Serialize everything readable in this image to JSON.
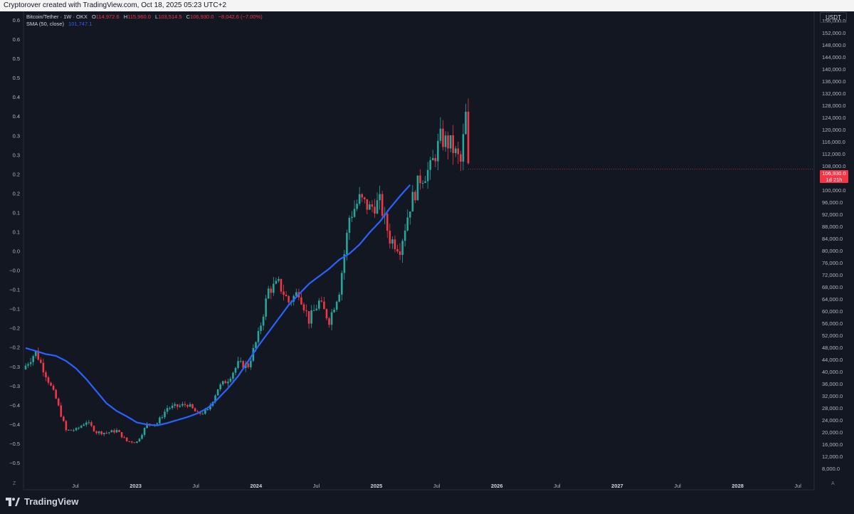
{
  "header": {
    "credit": "Cryptorover created with TradingView.com, Oct 18, 2025 05:23 UTC+2"
  },
  "legend": {
    "symbol": "Bitcoin/Tether · 1W · OKX",
    "open_label": "O",
    "open": "114,972.6",
    "high_label": "H",
    "high": "115,960.0",
    "low_label": "L",
    "low": "103,514.5",
    "close_label": "C",
    "close": "106,930.0",
    "change": "−8,042.6 (−7.00%)",
    "sma_label": "SMA (50, close)",
    "sma_value": "101,747.1"
  },
  "currency": "USDT",
  "price_tag": {
    "price": "106,930.0",
    "countdown": "1d 21h"
  },
  "axis_corners": {
    "left": "Z",
    "right": "A"
  },
  "footer": {
    "brand": "TradingView"
  },
  "colors": {
    "up": "#26a69a",
    "down": "#f23645",
    "sma": "#2962ff",
    "background": "#131722"
  },
  "chart_data": {
    "type": "candlestick",
    "interval": "1W",
    "ylabel_right": "USDT",
    "y_right_ticks": [
      "156,000.0",
      "152,000.0",
      "148,000.0",
      "144,000.0",
      "140,000.0",
      "136,000.0",
      "132,000.0",
      "128,000.0",
      "124,000.0",
      "120,000.0",
      "116,000.0",
      "112,000.0",
      "108,000.0",
      "104,000.0",
      "100,000.0",
      "96,000.0",
      "92,000.0",
      "88,000.0",
      "84,000.0",
      "80,000.0",
      "76,000.0",
      "72,000.0",
      "68,000.0",
      "64,000.0",
      "60,000.0",
      "56,000.0",
      "52,000.0",
      "48,000.0",
      "44,000.0",
      "40,000.0",
      "36,000.0",
      "32,000.0",
      "28,000.0",
      "24,000.0",
      "20,000.0",
      "16,000.0",
      "12,000.0",
      "8,000.0"
    ],
    "y_left_ticks": [
      "0.6",
      "0.6",
      "0.5",
      "0.5",
      "0.4",
      "0.4",
      "0.3",
      "0.3",
      "0.2",
      "0.2",
      "0.1",
      "0.1",
      "0.0",
      "−0.0",
      "−0.1",
      "−0.1",
      "−0.2",
      "−0.2",
      "−0.3",
      "−0.3",
      "−0.4",
      "−0.4",
      "−0.5",
      "−0.5"
    ],
    "x_ticks": [
      "Jul",
      "2023",
      "Jul",
      "2024",
      "Jul",
      "2025",
      "Jul",
      "2026",
      "Jul",
      "2027",
      "Jul",
      "2028",
      "Jul"
    ],
    "series": [
      {
        "name": "Bitcoin/Tether · 1W · OKX",
        "points": [
          [
            0,
            42000
          ],
          [
            4,
            46500
          ],
          [
            8,
            39000
          ],
          [
            12,
            31000
          ],
          [
            16,
            20500
          ],
          [
            20,
            20800
          ],
          [
            24,
            23500
          ],
          [
            28,
            20000
          ],
          [
            32,
            19800
          ],
          [
            36,
            20500
          ],
          [
            40,
            17000
          ],
          [
            44,
            16800
          ],
          [
            48,
            22500
          ],
          [
            52,
            23000
          ],
          [
            56,
            28000
          ],
          [
            60,
            28500
          ],
          [
            64,
            29200
          ],
          [
            68,
            26000
          ],
          [
            72,
            27000
          ],
          [
            76,
            34500
          ],
          [
            80,
            37500
          ],
          [
            84,
            42500
          ],
          [
            88,
            42000
          ],
          [
            92,
            52000
          ],
          [
            96,
            67000
          ],
          [
            100,
            69000
          ],
          [
            104,
            63000
          ],
          [
            108,
            66500
          ],
          [
            112,
            57000
          ],
          [
            116,
            63000
          ],
          [
            120,
            57000
          ],
          [
            124,
            67000
          ],
          [
            128,
            91000
          ],
          [
            132,
            97000
          ],
          [
            136,
            94000
          ],
          [
            140,
            96000
          ],
          [
            144,
            84000
          ],
          [
            148,
            81000
          ],
          [
            152,
            95000
          ],
          [
            156,
            104000
          ],
          [
            160,
            107000
          ],
          [
            164,
            117000
          ],
          [
            168,
            115000
          ],
          [
            172,
            109000
          ],
          [
            174,
            124500
          ],
          [
            175,
            107000
          ]
        ]
      },
      {
        "name": "SMA (50, close)",
        "points": [
          [
            0,
            47800
          ],
          [
            4,
            46800
          ],
          [
            8,
            45800
          ],
          [
            12,
            45200
          ],
          [
            16,
            43500
          ],
          [
            20,
            41000
          ],
          [
            24,
            37500
          ],
          [
            28,
            33500
          ],
          [
            32,
            29500
          ],
          [
            36,
            27000
          ],
          [
            40,
            25200
          ],
          [
            44,
            23200
          ],
          [
            48,
            22500
          ],
          [
            52,
            22200
          ],
          [
            56,
            23000
          ],
          [
            60,
            24000
          ],
          [
            64,
            25000
          ],
          [
            68,
            26200
          ],
          [
            72,
            28000
          ],
          [
            76,
            31000
          ],
          [
            80,
            34500
          ],
          [
            84,
            38500
          ],
          [
            88,
            43500
          ],
          [
            92,
            48500
          ],
          [
            96,
            53000
          ],
          [
            100,
            57500
          ],
          [
            104,
            62000
          ],
          [
            108,
            65500
          ],
          [
            112,
            69000
          ],
          [
            116,
            71500
          ],
          [
            120,
            74000
          ],
          [
            124,
            77000
          ],
          [
            128,
            79000
          ],
          [
            132,
            82000
          ],
          [
            136,
            86000
          ],
          [
            140,
            89500
          ],
          [
            144,
            94000
          ],
          [
            148,
            98000
          ],
          [
            152,
            101747
          ]
        ]
      }
    ]
  }
}
